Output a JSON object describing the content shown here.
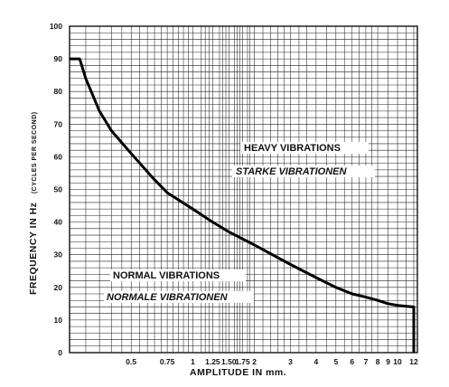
{
  "chart_data": {
    "type": "line",
    "xlabel": "AMPLITUDE IN mm.",
    "ylabel": "FREQUENCY IN Hz",
    "ylabel_unit": "(CYCLES PER SECOND)",
    "ylim": [
      0,
      100
    ],
    "y_ticks": [
      "0",
      "10",
      "20",
      "30",
      "40",
      "50",
      "60",
      "70",
      "80",
      "90",
      "100"
    ],
    "x_ticks": [
      "0.5",
      "0.75",
      "1",
      "1.25",
      "1.50",
      "1.75",
      "2",
      "3",
      "4",
      "5",
      "6",
      "7",
      "8",
      "9",
      "10",
      "12"
    ],
    "grid": true,
    "annotations": {
      "heavy_en": "HEAVY VIBRATIONS",
      "heavy_de": "STARKE VIBRATIONEN",
      "normal_en": "NORMAL VIBRATIONS",
      "normal_de": "NORMALE VIBRATIONEN"
    },
    "series": [
      {
        "x": [
          0.25,
          0.28,
          0.3,
          0.35,
          0.4,
          0.5,
          0.65,
          0.75,
          1,
          1.25,
          1.5,
          2,
          3,
          4,
          5,
          6,
          7,
          8,
          9,
          10,
          12,
          12
        ],
        "y": [
          90,
          90,
          84,
          74,
          68,
          61,
          53,
          49,
          44,
          40,
          37,
          33,
          27,
          23,
          20,
          18,
          17,
          16,
          15,
          14.5,
          14,
          0
        ]
      }
    ]
  }
}
